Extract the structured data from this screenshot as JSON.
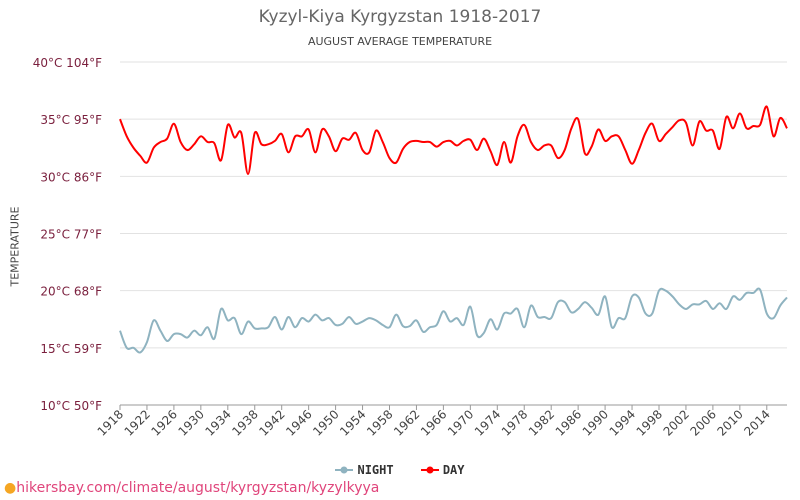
{
  "chart_data": {
    "type": "line",
    "title": "Kyzyl-Kiya Kyrgyzstan 1918-2017",
    "subtitle": "AUGUST AVERAGE TEMPERATURE",
    "ylabel": "TEMPERATURE",
    "xlabel": "",
    "x_start": 1918,
    "ylim": [
      10,
      40
    ],
    "y_ticks": [
      {
        "v": 10,
        "label": "10°C 50°F"
      },
      {
        "v": 15,
        "label": "15°C 59°F"
      },
      {
        "v": 20,
        "label": "20°C 68°F"
      },
      {
        "v": 25,
        "label": "25°C 77°F"
      },
      {
        "v": 30,
        "label": "30°C 86°F"
      },
      {
        "v": 35,
        "label": "35°C 95°F"
      },
      {
        "v": 40,
        "label": "40°C 104°F"
      }
    ],
    "x_ticks": [
      "1918",
      "1922",
      "1926",
      "1930",
      "1934",
      "1938",
      "1942",
      "1946",
      "1950",
      "1954",
      "1958",
      "1962",
      "1966",
      "1970",
      "1974",
      "1978",
      "1982",
      "1986",
      "1990",
      "1994",
      "1998",
      "2002",
      "2006",
      "2010",
      "2014"
    ],
    "grid": true,
    "legend_position": "bottom",
    "series": [
      {
        "name": "NIGHT",
        "color": "#8fb3c0",
        "values": [
          16.5,
          15,
          15,
          14.6,
          15.5,
          17.4,
          16.5,
          15.6,
          16.2,
          16.2,
          15.9,
          16.5,
          16.1,
          16.8,
          15.8,
          18.4,
          17.4,
          17.6,
          16.2,
          17.3,
          16.7,
          16.7,
          16.8,
          17.7,
          16.6,
          17.7,
          16.8,
          17.6,
          17.3,
          17.9,
          17.4,
          17.6,
          17,
          17.1,
          17.7,
          17.1,
          17.3,
          17.6,
          17.4,
          17,
          16.8,
          17.9,
          16.9,
          16.9,
          17.4,
          16.4,
          16.8,
          17,
          18.2,
          17.3,
          17.6,
          17,
          18.6,
          16.1,
          16.3,
          17.5,
          16.6,
          18,
          18,
          18.4,
          16.8,
          18.7,
          17.7,
          17.7,
          17.6,
          19,
          19,
          18.1,
          18.4,
          19,
          18.5,
          17.9,
          19.5,
          16.8,
          17.6,
          17.6,
          19.5,
          19.4,
          18,
          18,
          20,
          20,
          19.5,
          18.8,
          18.4,
          18.8,
          18.8,
          19.1,
          18.4,
          18.9,
          18.4,
          19.5,
          19.2,
          19.8,
          19.8,
          20.1,
          18,
          17.6,
          18.7,
          19.4
        ]
      },
      {
        "name": "DAY",
        "color": "#ff0000",
        "values": [
          35,
          33.5,
          32.5,
          31.8,
          31.2,
          32.5,
          33,
          33.3,
          34.6,
          33,
          32.3,
          32.8,
          33.5,
          33,
          32.9,
          31.4,
          34.5,
          33.4,
          33.8,
          30.2,
          33.8,
          32.8,
          32.8,
          33.1,
          33.7,
          32.1,
          33.5,
          33.5,
          34.1,
          32.1,
          34.1,
          33.5,
          32.2,
          33.3,
          33.2,
          33.8,
          32.3,
          32.1,
          34,
          33,
          31.6,
          31.2,
          32.4,
          33,
          33.1,
          33,
          33,
          32.6,
          33,
          33.1,
          32.7,
          33.1,
          33.2,
          32.3,
          33.3,
          32.2,
          31,
          33,
          31.2,
          33.5,
          34.5,
          33,
          32.3,
          32.7,
          32.7,
          31.6,
          32.3,
          34.2,
          35,
          32,
          32.6,
          34.1,
          33.1,
          33.5,
          33.5,
          32.3,
          31.1,
          32.3,
          33.8,
          34.6,
          33.1,
          33.7,
          34.3,
          34.9,
          34.7,
          32.7,
          34.8,
          34,
          34,
          32.4,
          35.2,
          34.2,
          35.5,
          34.2,
          34.4,
          34.5,
          36.1,
          33.5,
          35.1,
          34.2
        ]
      }
    ]
  },
  "footer": {
    "url": "hikersbay.com/climate/august/kyrgyzstan/kyzylkyya"
  }
}
